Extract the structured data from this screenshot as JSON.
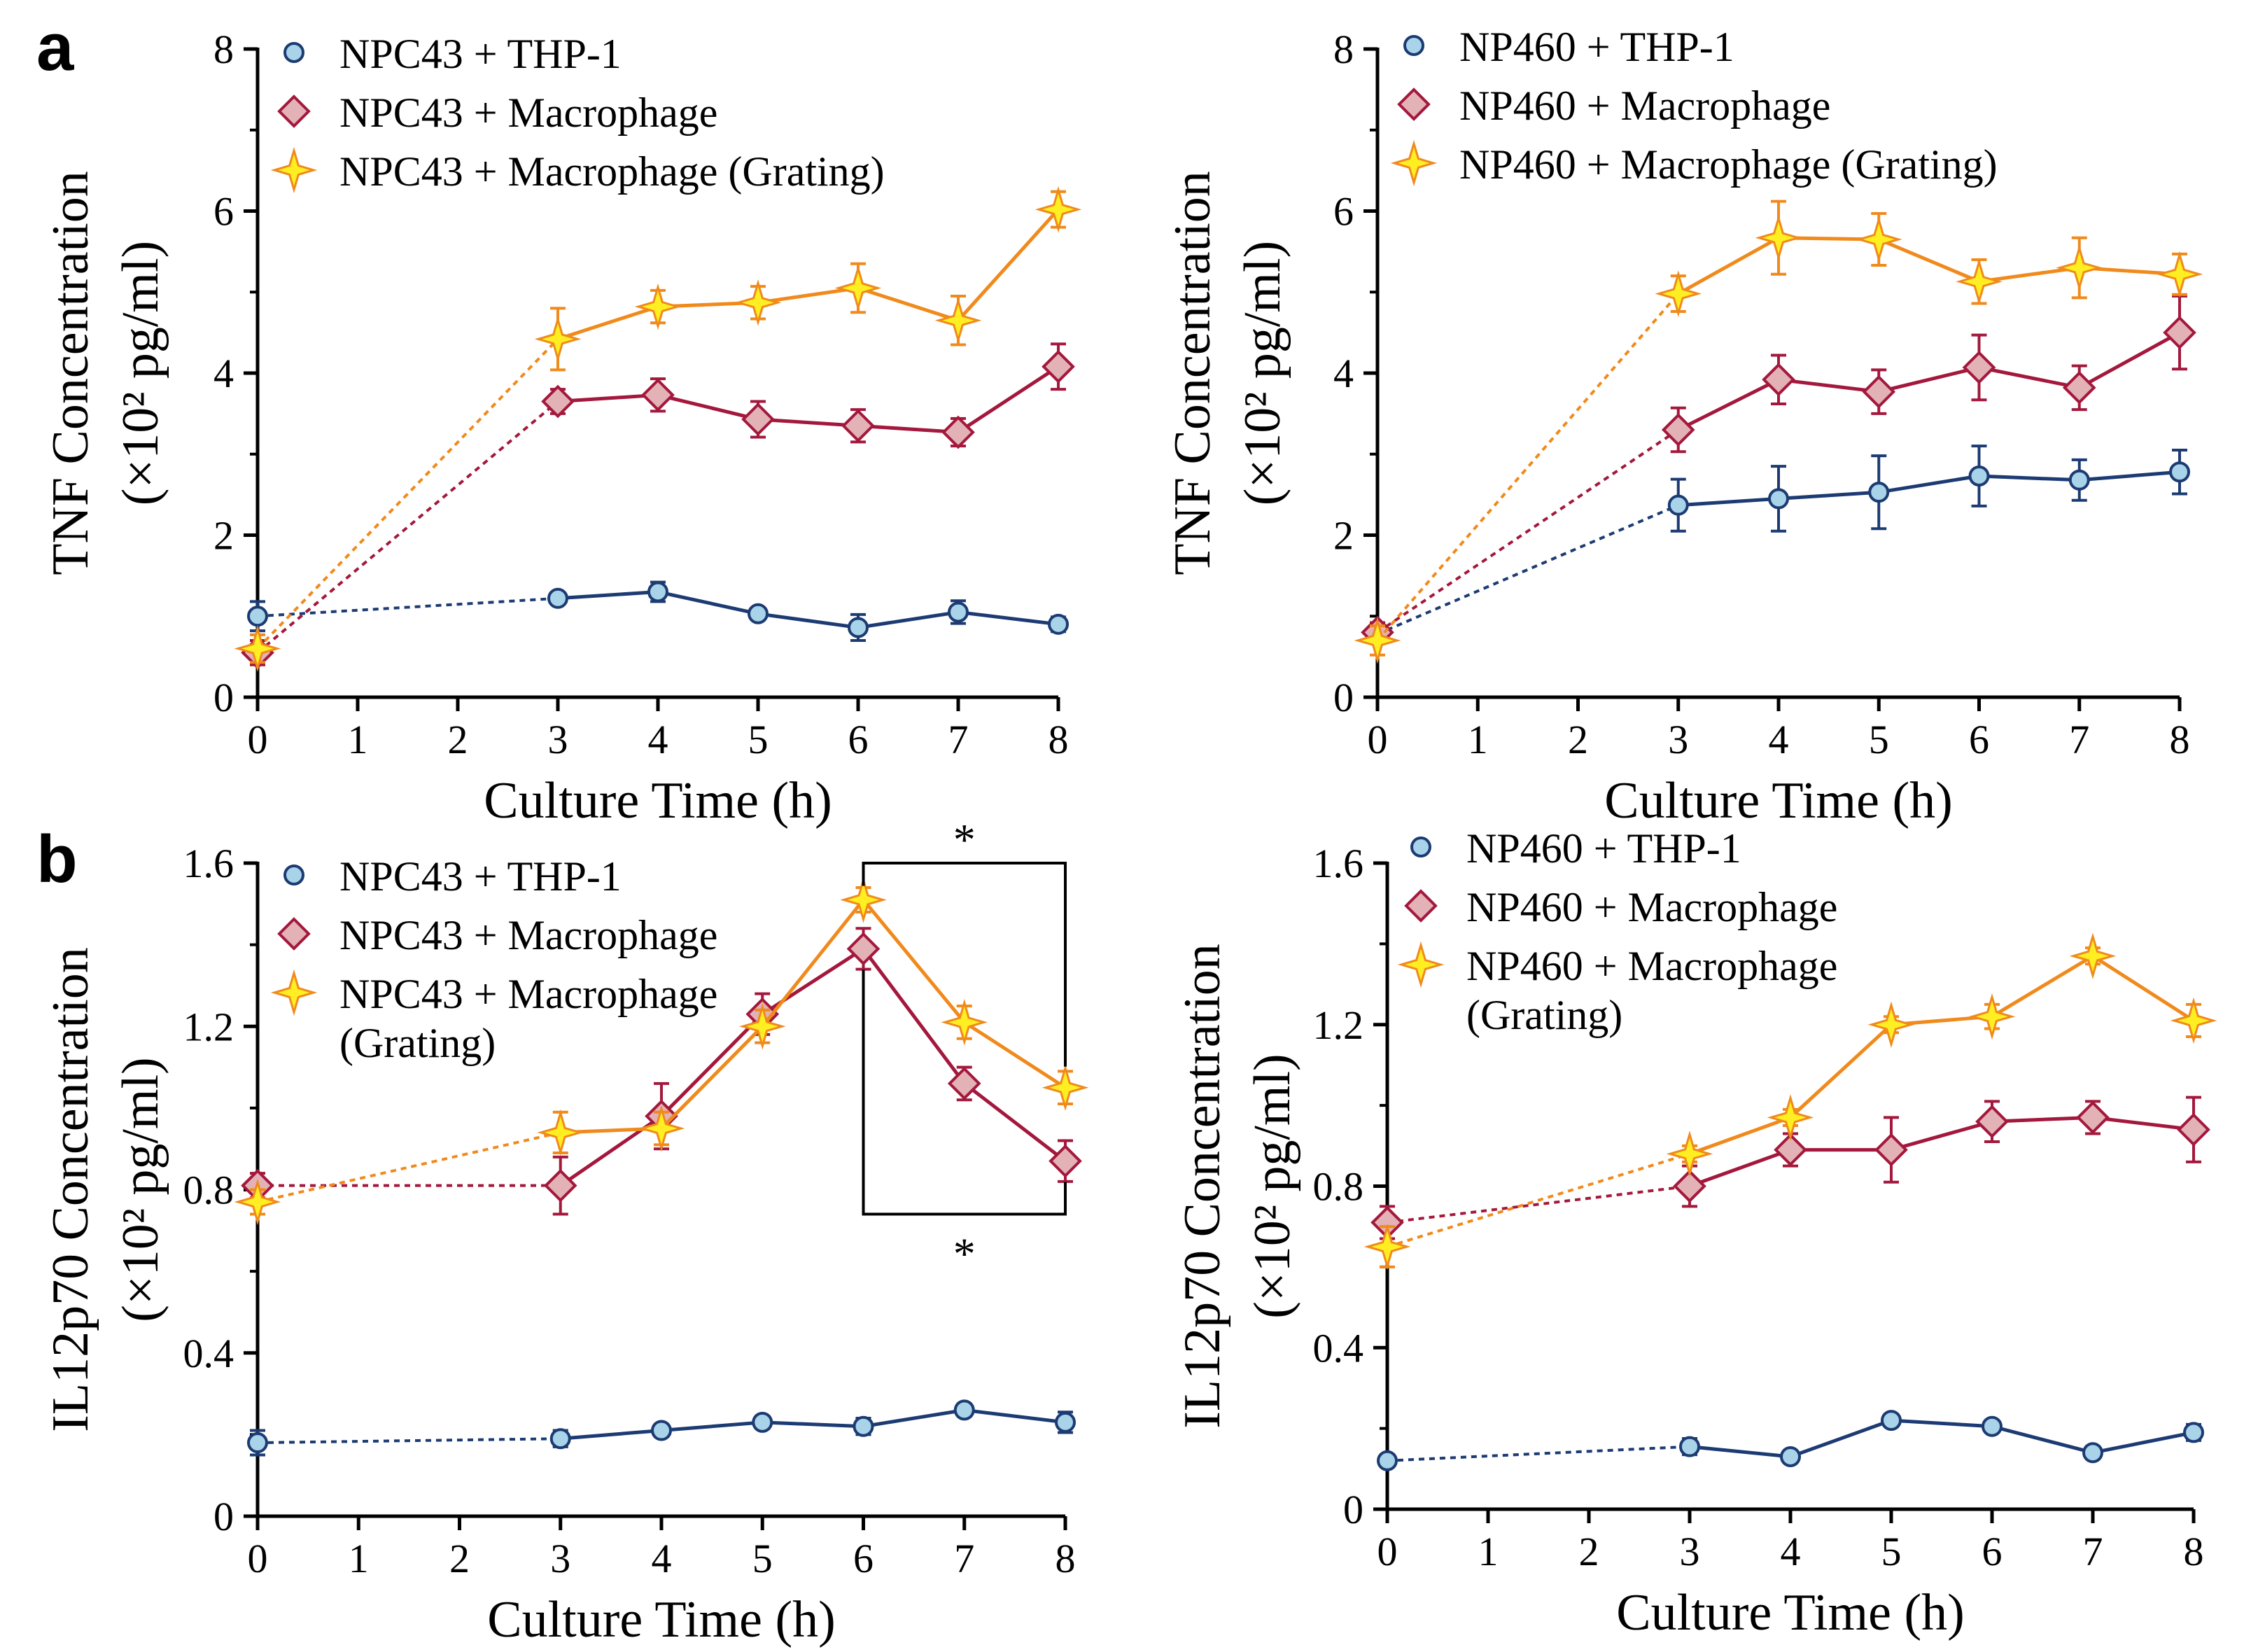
{
  "colors": {
    "thp1_line": "#1c3b73",
    "thp1_fill": "#a8d3e8",
    "macro_line": "#a3183c",
    "macro_fill": "#e3b2b6",
    "grating_line": "#f08a1c",
    "grating_fill": "#ffee22",
    "axis": "#000000"
  },
  "panel_letters": [
    "a",
    "b"
  ],
  "chart_data": [
    {
      "id": "a-left",
      "type": "line",
      "xlabel": "Culture Time (h)",
      "ylabel": [
        "TNF Concentration",
        "(×10² pg/ml)"
      ],
      "xlim": [
        0,
        8
      ],
      "ylim": [
        0,
        8
      ],
      "xticks": [
        0,
        1,
        2,
        3,
        4,
        5,
        6,
        7,
        8
      ],
      "xtick_labels": [
        "0",
        "1",
        "2",
        "3",
        "4",
        "5",
        "6",
        "7",
        "8"
      ],
      "yticks": [
        0,
        2,
        4,
        6,
        8
      ],
      "ytick_labels": [
        "0",
        "2",
        "4",
        "6",
        "8"
      ],
      "legend": [
        {
          "label": "NPC43 + THP-1",
          "series": 0
        },
        {
          "label": "NPC43 + Macrophage",
          "series": 1
        },
        {
          "label": "NPC43 + Macrophage (Grating)",
          "series": 2
        }
      ],
      "x": [
        0,
        3,
        4,
        5,
        6,
        7,
        8
      ],
      "series": [
        {
          "name": "NPC43 + THP-1",
          "style": "thp1",
          "values": [
            1.0,
            1.22,
            1.3,
            1.03,
            0.86,
            1.05,
            0.9
          ],
          "errors": [
            0.18,
            0.07,
            0.12,
            0.07,
            0.16,
            0.14,
            0.09
          ]
        },
        {
          "name": "NPC43 + Macrophage",
          "style": "macro",
          "values": [
            0.55,
            3.65,
            3.73,
            3.43,
            3.35,
            3.27,
            4.08
          ],
          "errors": [
            0.15,
            0.15,
            0.2,
            0.22,
            0.2,
            0.17,
            0.28
          ]
        },
        {
          "name": "NPC43 + Macrophage (Grating)",
          "style": "grating",
          "values": [
            0.6,
            4.42,
            4.82,
            4.87,
            5.05,
            4.65,
            6.02
          ],
          "errors": [
            0.17,
            0.38,
            0.2,
            0.2,
            0.3,
            0.3,
            0.22
          ]
        }
      ],
      "annotations": []
    },
    {
      "id": "a-right",
      "type": "line",
      "xlabel": "Culture Time (h)",
      "ylabel": [
        "TNF Concentration",
        "(×10² pg/ml)"
      ],
      "xlim": [
        0,
        8
      ],
      "ylim": [
        0,
        8
      ],
      "xticks": [
        0,
        1,
        2,
        3,
        4,
        5,
        6,
        7,
        8
      ],
      "xtick_labels": [
        "0",
        "1",
        "2",
        "3",
        "4",
        "5",
        "6",
        "7",
        "8"
      ],
      "yticks": [
        0,
        2,
        4,
        6,
        8
      ],
      "ytick_labels": [
        "0",
        "2",
        "4",
        "6",
        "8"
      ],
      "legend": [
        {
          "label": "NP460 + THP-1",
          "series": 0
        },
        {
          "label": "NP460 + Macrophage",
          "series": 1
        },
        {
          "label": "NP460 + Macrophage (Grating)",
          "series": 2
        }
      ],
      "x": [
        0,
        3,
        4,
        5,
        6,
        7,
        8
      ],
      "series": [
        {
          "name": "NP460 + THP-1",
          "style": "thp1",
          "values": [
            0.78,
            2.37,
            2.45,
            2.53,
            2.73,
            2.68,
            2.78
          ],
          "errors": [
            0.1,
            0.32,
            0.4,
            0.45,
            0.37,
            0.25,
            0.27
          ]
        },
        {
          "name": "NP460 + Macrophage",
          "style": "macro",
          "values": [
            0.8,
            3.3,
            3.92,
            3.77,
            4.07,
            3.82,
            4.5
          ],
          "errors": [
            0.12,
            0.27,
            0.3,
            0.27,
            0.4,
            0.27,
            0.45
          ]
        },
        {
          "name": "NP460 + Macrophage (Grating)",
          "style": "grating",
          "values": [
            0.7,
            4.98,
            5.67,
            5.65,
            5.13,
            5.3,
            5.22
          ],
          "errors": [
            0.18,
            0.22,
            0.45,
            0.32,
            0.27,
            0.37,
            0.25
          ]
        }
      ],
      "annotations": []
    },
    {
      "id": "b-left",
      "type": "line",
      "xlabel": "Culture Time (h)",
      "ylabel": [
        "IL12p70 Concentration",
        "(×10² pg/ml)"
      ],
      "xlim": [
        0,
        8
      ],
      "ylim": [
        0,
        1.6
      ],
      "xticks": [
        0,
        1,
        2,
        3,
        4,
        5,
        6,
        7,
        8
      ],
      "xtick_labels": [
        "0",
        "1",
        "2",
        "3",
        "4",
        "5",
        "6",
        "7",
        "8"
      ],
      "yticks": [
        0,
        0.4,
        0.8,
        1.2,
        1.6
      ],
      "ytick_labels": [
        "0",
        "0.4",
        "0.8",
        "1.2",
        "1.6"
      ],
      "legend": [
        {
          "label": "NPC43 + THP-1",
          "series": 0
        },
        {
          "label": "NPC43 + Macrophage",
          "series": 1
        },
        {
          "label": "NPC43 + Macrophage",
          "label2": "(Grating)",
          "series": 2
        }
      ],
      "x": [
        0,
        3,
        4,
        5,
        6,
        7,
        8
      ],
      "series": [
        {
          "name": "NPC43 + THP-1",
          "style": "thp1",
          "values": [
            0.18,
            0.19,
            0.21,
            0.23,
            0.22,
            0.26,
            0.23
          ],
          "errors": [
            0.03,
            0.02,
            0.015,
            0.015,
            0.02,
            0.015,
            0.025
          ]
        },
        {
          "name": "NPC43 + Macrophage",
          "style": "macro",
          "values": [
            0.81,
            0.81,
            0.98,
            1.23,
            1.39,
            1.06,
            0.87
          ],
          "errors": [
            0.03,
            0.07,
            0.08,
            0.05,
            0.05,
            0.04,
            0.05
          ]
        },
        {
          "name": "NPC43 + Macrophage (Grating)",
          "style": "grating",
          "values": [
            0.77,
            0.94,
            0.95,
            1.2,
            1.51,
            1.21,
            1.05
          ],
          "errors": [
            0.03,
            0.05,
            0.04,
            0.04,
            0.03,
            0.04,
            0.04
          ]
        }
      ],
      "annotations": [
        {
          "type": "significance",
          "x1": 6,
          "x2": 8,
          "y_top": 1.6,
          "y_bottom": 0.74,
          "top_label": "*",
          "bottom_label": "*"
        }
      ]
    },
    {
      "id": "b-right",
      "type": "line",
      "xlabel": "Culture Time (h)",
      "ylabel": [
        "IL12p70 Concentration",
        "(×10² pg/ml)"
      ],
      "xlim": [
        0,
        8
      ],
      "ylim": [
        0,
        1.6
      ],
      "xticks": [
        0,
        1,
        2,
        3,
        4,
        5,
        6,
        7,
        8
      ],
      "xtick_labels": [
        "0",
        "1",
        "2",
        "3",
        "4",
        "5",
        "6",
        "7",
        "8"
      ],
      "yticks": [
        0,
        0.4,
        0.8,
        1.2,
        1.6
      ],
      "ytick_labels": [
        "0",
        "0.4",
        "0.8",
        "1.2",
        "1.6"
      ],
      "legend": [
        {
          "label": "NP460 + THP-1",
          "series": 0
        },
        {
          "label": "NP460 + Macrophage",
          "series": 1
        },
        {
          "label": "NP460 + Macrophage",
          "label2": "(Grating)",
          "series": 2
        }
      ],
      "x": [
        0,
        3,
        4,
        5,
        6,
        7,
        8
      ],
      "series": [
        {
          "name": "NP460 + THP-1",
          "style": "thp1",
          "values": [
            0.12,
            0.155,
            0.13,
            0.22,
            0.205,
            0.14,
            0.19
          ],
          "errors": [
            0.015,
            0.02,
            0.015,
            0.015,
            0.01,
            0.015,
            0.02
          ]
        },
        {
          "name": "NP460 + Macrophage",
          "style": "macro",
          "values": [
            0.71,
            0.8,
            0.89,
            0.89,
            0.96,
            0.97,
            0.94
          ],
          "errors": [
            0.04,
            0.05,
            0.04,
            0.08,
            0.05,
            0.04,
            0.08
          ]
        },
        {
          "name": "NP460 + Macrophage (Grating)",
          "style": "grating",
          "values": [
            0.65,
            0.88,
            0.97,
            1.2,
            1.22,
            1.37,
            1.21
          ],
          "errors": [
            0.05,
            0.02,
            0.02,
            0.02,
            0.03,
            0.02,
            0.04
          ]
        }
      ],
      "annotations": []
    }
  ]
}
